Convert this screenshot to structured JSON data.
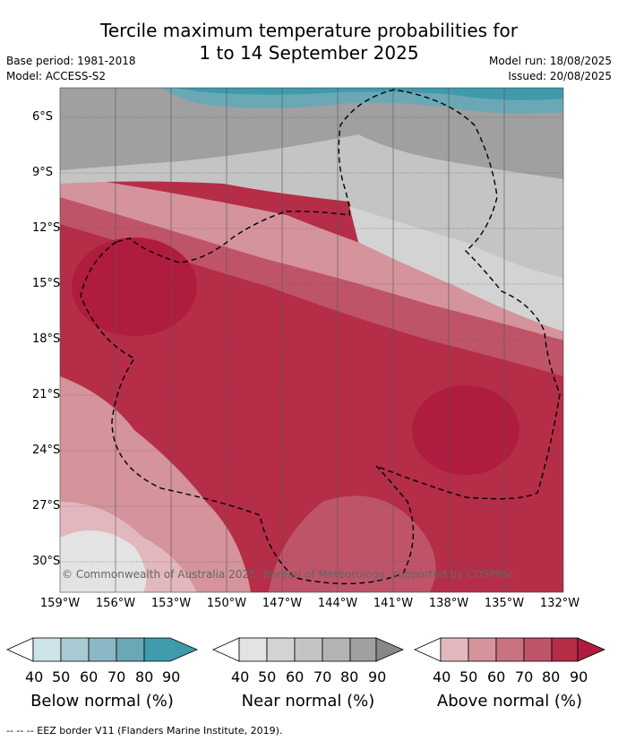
{
  "title_line1": "Tercile maximum temperature probabilities for",
  "title_line2": "1 to 14 September 2025",
  "base_period": "Base period: 1981-2018",
  "model": "Model: ACCESS-S2",
  "model_run": "Model run: 18/08/2025",
  "issued": "Issued: 20/08/2025",
  "lat_labels": [
    "6°S",
    "9°S",
    "12°S",
    "15°S",
    "18°S",
    "21°S",
    "24°S",
    "27°S",
    "30°S"
  ],
  "lon_labels": [
    "159°W",
    "156°W",
    "153°W",
    "150°W",
    "147°W",
    "144°W",
    "141°W",
    "138°W",
    "135°W",
    "132°W"
  ],
  "copyright": "© Commonwealth of Australia 2025, Bureau of Meteorology, supported by COSPPac",
  "legends": [
    {
      "title": "Below normal (%)",
      "ticks": [
        "40",
        "50",
        "60",
        "70",
        "80",
        "90"
      ],
      "colors": [
        "#ffffff",
        "#cde3e8",
        "#a8cbd3",
        "#8ab8c4",
        "#6aa8b5",
        "#3f9aab"
      ]
    },
    {
      "title": "Near normal (%)",
      "ticks": [
        "40",
        "50",
        "60",
        "70",
        "80",
        "90"
      ],
      "colors": [
        "#ffffff",
        "#e3e3e3",
        "#d3d3d3",
        "#c4c4c4",
        "#b3b3b3",
        "#a0a0a0",
        "#888888"
      ]
    },
    {
      "title": "Above normal (%)",
      "ticks": [
        "40",
        "50",
        "60",
        "70",
        "80",
        "90"
      ],
      "colors": [
        "#ffffff",
        "#e2b8be",
        "#d5939c",
        "#c8737f",
        "#bf5468",
        "#b52d47",
        "#b01c3e"
      ]
    }
  ],
  "footnote": "-- -- -- EEZ border V11 (Flanders Marine Institute, 2019).",
  "colors": {
    "above_90": "#b01c3e",
    "above_80": "#b52d47",
    "above_70": "#bf5468",
    "above_60": "#c8737f",
    "above_50": "#d5939c",
    "near_70": "#c4c4c4",
    "near_80": "#a0a0a0",
    "below_80": "#3f9aab"
  }
}
